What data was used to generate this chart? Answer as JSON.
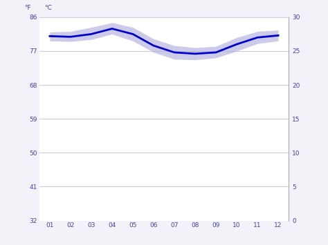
{
  "months": [
    1,
    2,
    3,
    4,
    5,
    6,
    7,
    8,
    9,
    10,
    11,
    12
  ],
  "month_labels": [
    "01",
    "02",
    "03",
    "04",
    "05",
    "06",
    "07",
    "08",
    "09",
    "10",
    "11",
    "12"
  ],
  "temp_mean": [
    27.2,
    27.1,
    27.5,
    28.3,
    27.5,
    25.8,
    24.8,
    24.6,
    24.8,
    26.0,
    27.0,
    27.3
  ],
  "temp_high": [
    27.8,
    27.9,
    28.5,
    29.2,
    28.5,
    26.8,
    25.8,
    25.5,
    25.7,
    27.0,
    27.9,
    28.1
  ],
  "temp_low": [
    26.5,
    26.4,
    26.7,
    27.5,
    26.5,
    24.8,
    23.8,
    23.7,
    24.0,
    25.0,
    26.1,
    26.5
  ],
  "line_color": "#0000cc",
  "band_color": "#aaaadd",
  "background_color": "#f2f2f8",
  "plot_bg_color": "#ffffff",
  "grid_color": "#ccccdd",
  "label_color": "#4444aa",
  "right_border_color": "#aaaaaa",
  "ylim_c": [
    0,
    30
  ],
  "yticks_c": [
    0,
    5,
    10,
    15,
    20,
    25,
    30
  ],
  "yticks_f": [
    32,
    41,
    50,
    59,
    68,
    77,
    86
  ],
  "ylabel_left": "°F",
  "ylabel_right": "°C"
}
